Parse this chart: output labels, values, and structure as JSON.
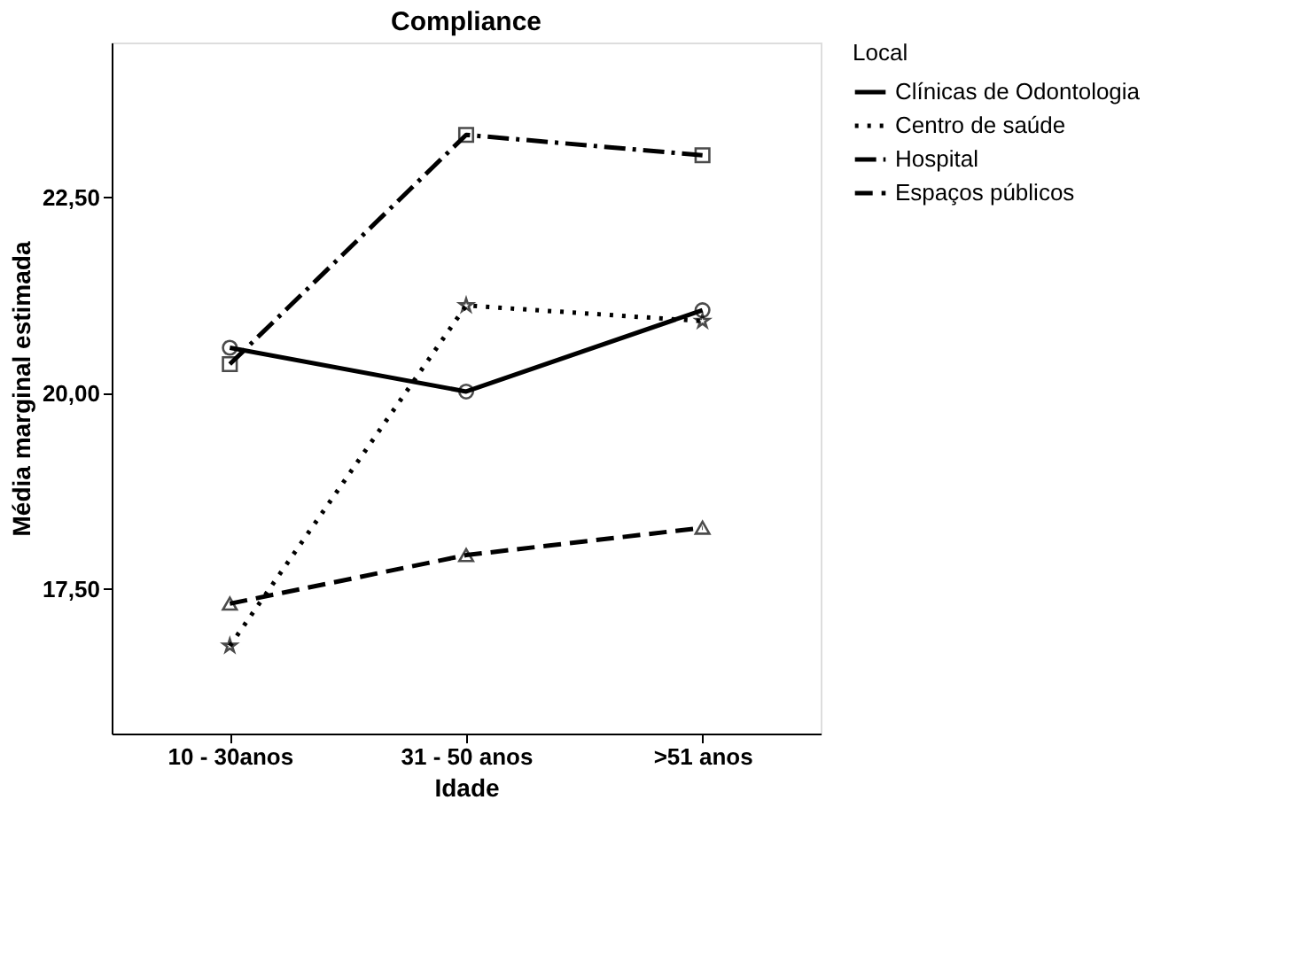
{
  "chart_data": {
    "type": "line",
    "title": "Compliance",
    "xlabel": "Idade",
    "ylabel": "Média marginal estimada",
    "legend_title": "Local",
    "legend": "right",
    "grid": false,
    "categories": [
      "10 - 30anos",
      "31 - 50 anos",
      ">51 anos"
    ],
    "ylim": [
      15.65,
      24.48
    ],
    "yticks": [
      {
        "value": 17.5,
        "label": "17,50"
      },
      {
        "value": 20,
        "label": "20,00"
      },
      {
        "value": 22.5,
        "label": "22,50"
      }
    ],
    "series": [
      {
        "name": "Clínicas de Odontologia",
        "color": "#000000",
        "values": [
          20.58,
          20.02,
          21.06
        ],
        "marker": "circle",
        "line_style": "solid"
      },
      {
        "name": "Centro de saúde",
        "color": "#000000",
        "values": [
          16.77,
          21.12,
          20.92
        ],
        "marker": "star",
        "line_style": "dotted"
      },
      {
        "name": "Hospital",
        "color": "#000000",
        "values": [
          20.37,
          23.3,
          23.04
        ],
        "marker": "square",
        "line_style": "dashdot"
      },
      {
        "name": "Espaços públicos",
        "color": "#000000",
        "values": [
          17.31,
          17.93,
          18.28
        ],
        "marker": "triangle",
        "line_style": "dashed"
      }
    ]
  }
}
